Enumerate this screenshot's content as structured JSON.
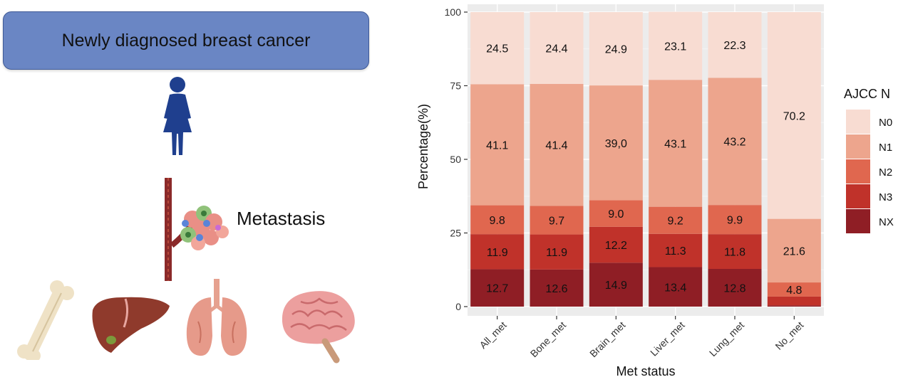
{
  "figure": {
    "title_box": "Newly diagnosed breast cancer",
    "metastasis_label": "Metastasis"
  },
  "colors": {
    "title_box": "#6a86c4",
    "N0": "#f8dcd2",
    "N1": "#eda58d",
    "N2": "#e0674f",
    "N3": "#c0322a",
    "NX": "#8f1e25",
    "panel_bg": "#ececec"
  },
  "chart_data": {
    "type": "bar",
    "stacked": true,
    "categories": [
      "All_met",
      "Bone_met",
      "Brain_met",
      "Liver_met",
      "Lung_met",
      "No_met"
    ],
    "series": [
      {
        "name": "NX",
        "values": [
          12.7,
          12.6,
          14.9,
          13.4,
          12.8,
          0.4
        ]
      },
      {
        "name": "N3",
        "values": [
          11.9,
          11.9,
          12.2,
          11.3,
          11.8,
          3.0
        ]
      },
      {
        "name": "N2",
        "values": [
          9.8,
          9.7,
          9.0,
          9.2,
          9.9,
          4.8
        ]
      },
      {
        "name": "N1",
        "values": [
          41.1,
          41.4,
          39.0,
          43.1,
          43.2,
          21.6
        ]
      },
      {
        "name": "N0",
        "values": [
          24.5,
          24.4,
          24.9,
          23.1,
          22.3,
          70.2
        ]
      }
    ],
    "data_labels": [
      {
        "category": "All_met",
        "series": "N0",
        "text": "24.5"
      },
      {
        "category": "All_met",
        "series": "N1",
        "text": "41.1"
      },
      {
        "category": "All_met",
        "series": "N2",
        "text": "9.8"
      },
      {
        "category": "All_met",
        "series": "N3",
        "text": "11.9"
      },
      {
        "category": "All_met",
        "series": "NX",
        "text": "12.7"
      },
      {
        "category": "Bone_met",
        "series": "N0",
        "text": "24.4"
      },
      {
        "category": "Bone_met",
        "series": "N1",
        "text": "41.4"
      },
      {
        "category": "Bone_met",
        "series": "N2",
        "text": "9.7"
      },
      {
        "category": "Bone_met",
        "series": "N3",
        "text": "11.9"
      },
      {
        "category": "Bone_met",
        "series": "NX",
        "text": "12.6"
      },
      {
        "category": "Brain_met",
        "series": "N0",
        "text": "24.9"
      },
      {
        "category": "Brain_met",
        "series": "N1",
        "text": "39,0"
      },
      {
        "category": "Brain_met",
        "series": "N2",
        "text": "9.0"
      },
      {
        "category": "Brain_met",
        "series": "N3",
        "text": "12.2"
      },
      {
        "category": "Brain_met",
        "series": "NX",
        "text": "14.9"
      },
      {
        "category": "Liver_met",
        "series": "N0",
        "text": "23.1"
      },
      {
        "category": "Liver_met",
        "series": "N1",
        "text": "43.1"
      },
      {
        "category": "Liver_met",
        "series": "N2",
        "text": "9.2"
      },
      {
        "category": "Liver_met",
        "series": "N3",
        "text": "11.3"
      },
      {
        "category": "Liver_met",
        "series": "NX",
        "text": "13.4"
      },
      {
        "category": "Lung_met",
        "series": "N0",
        "text": "22.3"
      },
      {
        "category": "Lung_met",
        "series": "N1",
        "text": "43.2"
      },
      {
        "category": "Lung_met",
        "series": "N2",
        "text": "9.9"
      },
      {
        "category": "Lung_met",
        "series": "N3",
        "text": "11.8"
      },
      {
        "category": "Lung_met",
        "series": "NX",
        "text": "12.8"
      },
      {
        "category": "No_met",
        "series": "N0",
        "text": "70.2"
      },
      {
        "category": "No_met",
        "series": "N1",
        "text": "21.6"
      },
      {
        "category": "No_met",
        "series": "N2",
        "text": "4.8"
      }
    ],
    "xlabel": "Met status",
    "ylabel": "Percentage(%)",
    "ylim": [
      0,
      100
    ],
    "yticks": [
      0,
      25,
      50,
      75,
      100
    ],
    "grid": true,
    "legend": {
      "title": "AJCC N",
      "entries": [
        "N0",
        "N1",
        "N2",
        "N3",
        "NX"
      ],
      "position": "right"
    }
  }
}
